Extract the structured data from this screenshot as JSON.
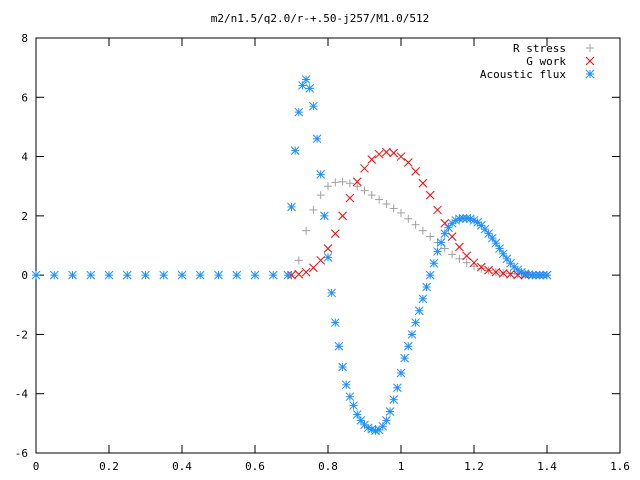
{
  "chart_data": {
    "type": "scatter",
    "title": "m2/n1.5/q2.0/r-+.50-j257/M1.0/512",
    "xlabel": "",
    "ylabel": "",
    "xlim": [
      0,
      1.6
    ],
    "ylim": [
      -6,
      8
    ],
    "xticks": [
      "0",
      "0.2",
      "0.4",
      "0.6",
      "0.8",
      "1",
      "1.2",
      "1.4",
      "1.6"
    ],
    "yticks": [
      "8",
      "6",
      "4",
      "2",
      "0",
      "-2",
      "-4",
      "-6"
    ],
    "grid": false,
    "legend_position": "top-right",
    "series": [
      {
        "name": "R stress",
        "marker": "plus",
        "color": "#a0a0a0",
        "x": [
          0.7,
          0.72,
          0.74,
          0.76,
          0.78,
          0.8,
          0.82,
          0.84,
          0.86,
          0.88,
          0.9,
          0.92,
          0.94,
          0.96,
          0.98,
          1.0,
          1.02,
          1.04,
          1.06,
          1.08,
          1.1,
          1.12,
          1.14,
          1.16,
          1.18,
          1.2,
          1.22,
          1.24,
          1.26,
          1.28,
          1.3,
          1.32,
          1.34,
          1.36,
          1.38,
          1.4
        ],
        "y": [
          0.0,
          0.5,
          1.5,
          2.2,
          2.7,
          3.0,
          3.13,
          3.15,
          3.1,
          3.0,
          2.85,
          2.7,
          2.55,
          2.4,
          2.25,
          2.1,
          1.9,
          1.7,
          1.5,
          1.3,
          1.1,
          0.9,
          0.7,
          0.55,
          0.42,
          0.3,
          0.22,
          0.16,
          0.1,
          0.07,
          0.05,
          0.03,
          0.02,
          0.01,
          0.0,
          0.0
        ]
      },
      {
        "name": "G work",
        "marker": "cross",
        "color": "#ff0000",
        "x": [
          0.7,
          0.72,
          0.74,
          0.76,
          0.78,
          0.8,
          0.82,
          0.84,
          0.86,
          0.88,
          0.9,
          0.92,
          0.94,
          0.96,
          0.98,
          1.0,
          1.02,
          1.04,
          1.06,
          1.08,
          1.1,
          1.12,
          1.14,
          1.16,
          1.18,
          1.2,
          1.22,
          1.24,
          1.26,
          1.28,
          1.3,
          1.32,
          1.34,
          1.36,
          1.38,
          1.4
        ],
        "y": [
          0.0,
          0.03,
          0.1,
          0.25,
          0.5,
          0.9,
          1.4,
          2.0,
          2.6,
          3.15,
          3.6,
          3.9,
          4.08,
          4.15,
          4.12,
          4.0,
          3.8,
          3.5,
          3.1,
          2.7,
          2.2,
          1.75,
          1.3,
          0.95,
          0.65,
          0.42,
          0.27,
          0.17,
          0.1,
          0.06,
          0.03,
          0.01,
          0.0,
          0.0,
          0.0,
          0.0
        ]
      },
      {
        "name": "Acoustic flux",
        "marker": "star",
        "color": "#1e8fff",
        "x": [
          0.0,
          0.05,
          0.1,
          0.15,
          0.2,
          0.25,
          0.3,
          0.35,
          0.4,
          0.45,
          0.5,
          0.55,
          0.6,
          0.65,
          0.69,
          0.7,
          0.71,
          0.72,
          0.73,
          0.74,
          0.75,
          0.76,
          0.77,
          0.78,
          0.79,
          0.8,
          0.81,
          0.82,
          0.83,
          0.84,
          0.85,
          0.86,
          0.87,
          0.88,
          0.89,
          0.9,
          0.91,
          0.92,
          0.93,
          0.94,
          0.95,
          0.96,
          0.97,
          0.98,
          0.99,
          1.0,
          1.01,
          1.02,
          1.03,
          1.04,
          1.05,
          1.06,
          1.07,
          1.08,
          1.09,
          1.1,
          1.11,
          1.12,
          1.13,
          1.14,
          1.15,
          1.16,
          1.17,
          1.18,
          1.19,
          1.2,
          1.21,
          1.22,
          1.23,
          1.24,
          1.25,
          1.26,
          1.27,
          1.28,
          1.29,
          1.3,
          1.31,
          1.32,
          1.33,
          1.34,
          1.35,
          1.36,
          1.37,
          1.38,
          1.39,
          1.4
        ],
        "y": [
          0.0,
          0.0,
          0.0,
          0.0,
          0.0,
          0.0,
          0.0,
          0.0,
          0.0,
          0.0,
          0.0,
          0.0,
          0.0,
          0.0,
          0.0,
          2.3,
          4.2,
          5.5,
          6.4,
          6.6,
          6.3,
          5.7,
          4.6,
          3.4,
          2.0,
          0.6,
          -0.6,
          -1.6,
          -2.4,
          -3.1,
          -3.7,
          -4.1,
          -4.4,
          -4.7,
          -4.9,
          -5.05,
          -5.15,
          -5.2,
          -5.25,
          -5.22,
          -5.1,
          -4.9,
          -4.6,
          -4.2,
          -3.8,
          -3.3,
          -2.8,
          -2.4,
          -2.0,
          -1.6,
          -1.2,
          -0.8,
          -0.4,
          0.0,
          0.4,
          0.8,
          1.1,
          1.4,
          1.6,
          1.75,
          1.85,
          1.9,
          1.92,
          1.92,
          1.9,
          1.85,
          1.78,
          1.68,
          1.55,
          1.4,
          1.25,
          1.08,
          0.9,
          0.72,
          0.55,
          0.4,
          0.28,
          0.18,
          0.1,
          0.05,
          0.02,
          0.0,
          0.0,
          0.0,
          0.0,
          0.0
        ]
      }
    ]
  }
}
